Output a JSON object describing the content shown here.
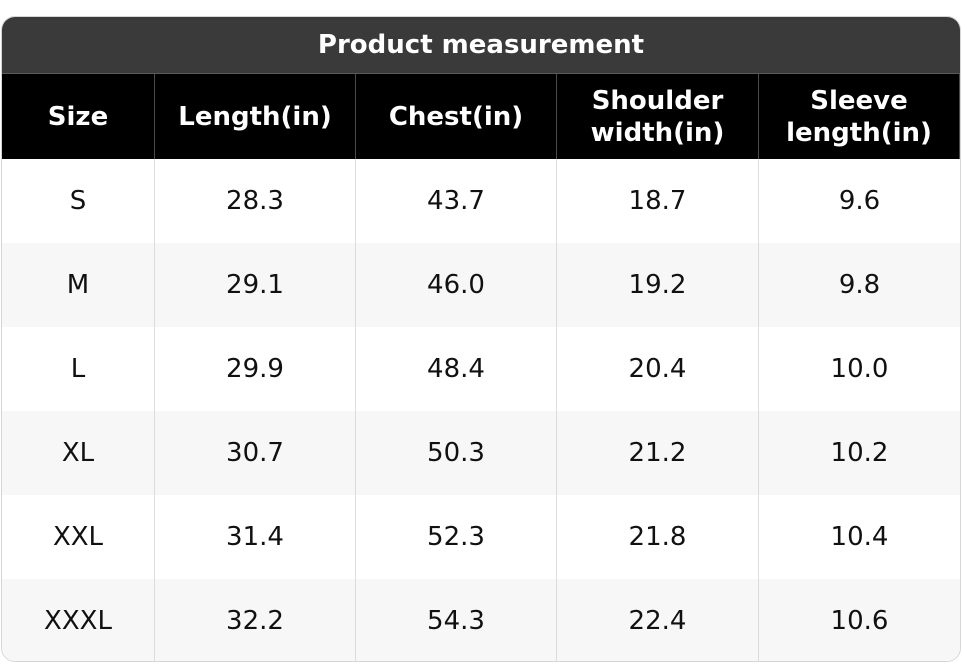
{
  "chart_data": {
    "type": "table",
    "title": "Product measurement",
    "columns": [
      "Size",
      "Length(in)",
      "Chest(in)",
      "Shoulder width(in)",
      "Sleeve length(in)"
    ],
    "column_lines": [
      [
        "Size"
      ],
      [
        "Length(in)"
      ],
      [
        "Chest(in)"
      ],
      [
        "Shoulder",
        "width(in)"
      ],
      [
        "Sleeve",
        "length(in)"
      ]
    ],
    "rows": [
      [
        "S",
        "28.3",
        "43.7",
        "18.7",
        "9.6"
      ],
      [
        "M",
        "29.1",
        "46.0",
        "19.2",
        "9.8"
      ],
      [
        "L",
        "29.9",
        "48.4",
        "20.4",
        "10.0"
      ],
      [
        "XL",
        "30.7",
        "50.3",
        "21.2",
        "10.2"
      ],
      [
        "XXL",
        "31.4",
        "52.3",
        "21.8",
        "10.4"
      ],
      [
        "XXXL",
        "32.2",
        "54.3",
        "22.4",
        "10.6"
      ]
    ]
  }
}
